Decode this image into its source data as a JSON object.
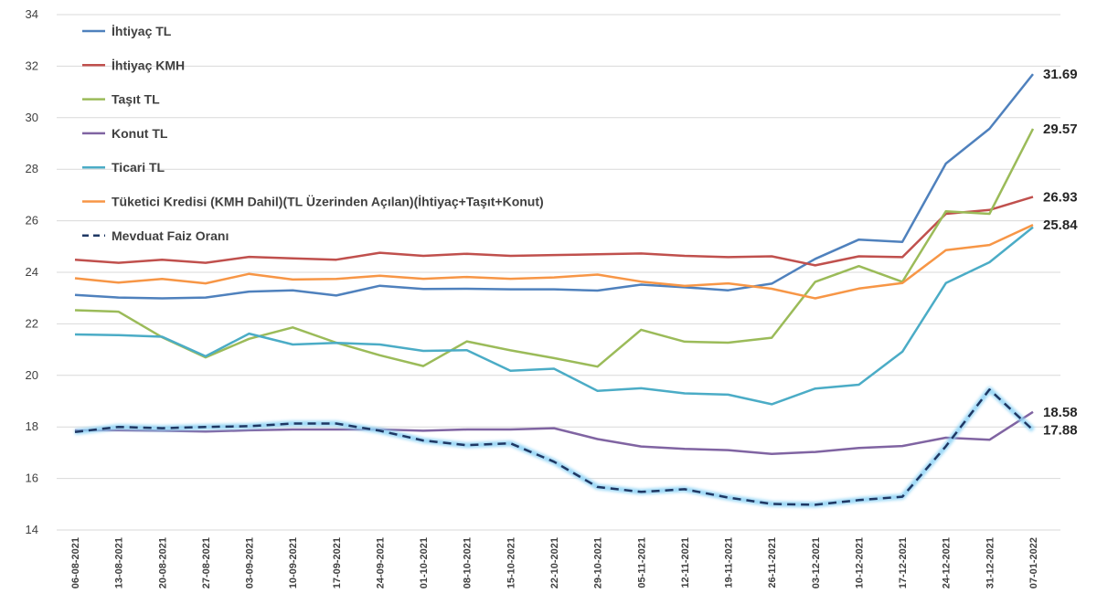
{
  "chart_data": {
    "type": "line",
    "title": "",
    "xlabel": "",
    "ylabel": "",
    "ylim": [
      14,
      34
    ],
    "yticks": [
      14,
      16,
      18,
      20,
      22,
      24,
      26,
      28,
      30,
      32,
      34
    ],
    "grid": "horizontal",
    "legend_position": "top-left",
    "x": [
      "06-08-2021",
      "13-08-2021",
      "20-08-2021",
      "27-08-2021",
      "03-09-2021",
      "10-09-2021",
      "17-09-2021",
      "24-09-2021",
      "01-10-2021",
      "08-10-2021",
      "15-10-2021",
      "22-10-2021",
      "29-10-2021",
      "05-11-2021",
      "12-11-2021",
      "19-11-2021",
      "26-11-2021",
      "03-12-2021",
      "10-12-2021",
      "17-12-2021",
      "24-12-2021",
      "31-12-2021",
      "07-01-2022"
    ],
    "series": [
      {
        "name": "İhtiyaç TL",
        "color": "#4F81BD",
        "style": "solid",
        "values": [
          23.12,
          23.02,
          22.99,
          23.02,
          23.25,
          23.3,
          23.1,
          23.48,
          23.35,
          23.36,
          23.34,
          23.34,
          23.29,
          23.52,
          23.42,
          23.3,
          23.56,
          24.52,
          25.27,
          25.18,
          28.22,
          29.57,
          31.69
        ],
        "end_label": "31.69"
      },
      {
        "name": "İhtiyaç KMH",
        "color": "#C0504D",
        "style": "solid",
        "values": [
          24.49,
          24.37,
          24.49,
          24.37,
          24.6,
          24.54,
          24.49,
          24.76,
          24.64,
          24.72,
          24.64,
          24.67,
          24.7,
          24.73,
          24.64,
          24.59,
          24.62,
          24.27,
          24.62,
          24.59,
          26.27,
          26.42,
          26.93
        ],
        "end_label": "26.93"
      },
      {
        "name": "Taşıt TL",
        "color": "#9BBB59",
        "style": "solid",
        "values": [
          22.53,
          22.47,
          21.48,
          20.7,
          21.42,
          21.86,
          21.27,
          20.78,
          20.36,
          21.32,
          20.97,
          20.67,
          20.34,
          21.77,
          21.31,
          21.27,
          21.46,
          23.63,
          24.24,
          23.63,
          26.37,
          26.27,
          29.57
        ],
        "end_label": "29.57"
      },
      {
        "name": "Konut TL",
        "color": "#8064A2",
        "style": "solid",
        "values": [
          17.87,
          17.87,
          17.85,
          17.82,
          17.87,
          17.9,
          17.9,
          17.9,
          17.85,
          17.9,
          17.9,
          17.95,
          17.53,
          17.24,
          17.15,
          17.1,
          16.95,
          17.03,
          17.18,
          17.26,
          17.58,
          17.5,
          18.58
        ],
        "end_label": "18.58"
      },
      {
        "name": "Ticari TL",
        "color": "#4BACC6",
        "style": "solid",
        "values": [
          21.59,
          21.56,
          21.5,
          20.74,
          21.62,
          21.2,
          21.26,
          21.2,
          20.95,
          20.98,
          20.18,
          20.26,
          19.4,
          19.5,
          19.3,
          19.25,
          18.88,
          19.49,
          19.64,
          20.92,
          23.58,
          24.39,
          25.75
        ],
        "end_label": ""
      },
      {
        "name": "Tüketici Kredisi (KMH Dahil)(TL Üzerinden Açılan)(İhtiyaç+Taşıt+Konut)",
        "color": "#F79646",
        "style": "solid",
        "values": [
          23.77,
          23.6,
          23.74,
          23.57,
          23.94,
          23.72,
          23.74,
          23.87,
          23.75,
          23.82,
          23.75,
          23.8,
          23.91,
          23.64,
          23.47,
          23.57,
          23.36,
          22.99,
          23.37,
          23.58,
          24.86,
          25.06,
          25.84
        ],
        "end_label": "25.84"
      },
      {
        "name": "Mevduat Faiz Oranı",
        "color": "#1F3864",
        "style": "dashed",
        "values": [
          17.8,
          18.0,
          17.95,
          18.0,
          18.03,
          18.13,
          18.13,
          17.85,
          17.47,
          17.29,
          17.36,
          16.65,
          15.67,
          15.48,
          15.58,
          15.26,
          15.01,
          14.98,
          15.16,
          15.29,
          17.25,
          19.45,
          17.88
        ],
        "end_label": "17.88"
      }
    ]
  }
}
